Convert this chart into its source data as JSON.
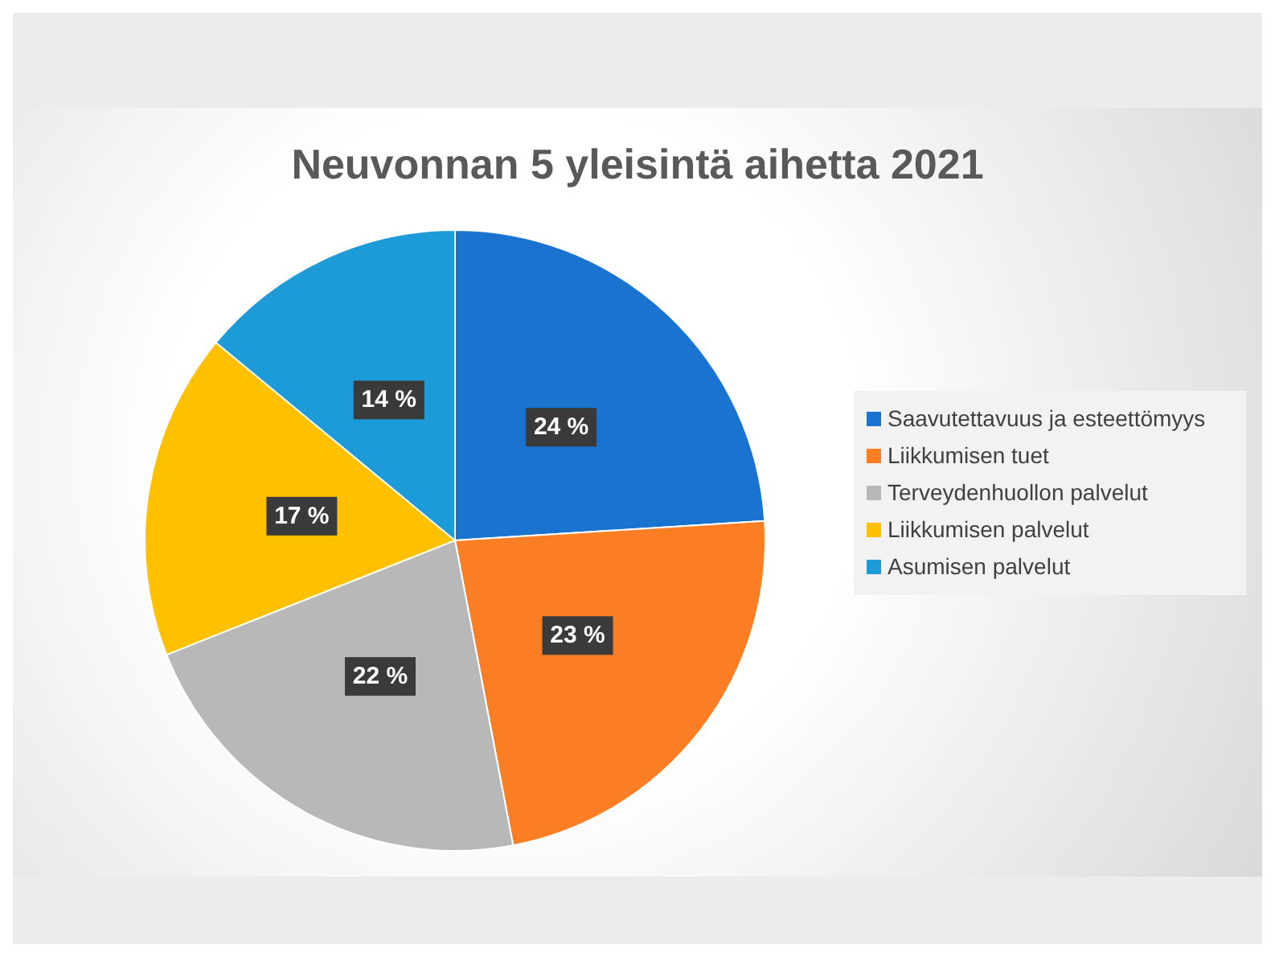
{
  "chart_data": {
    "type": "pie",
    "title": "Neuvonnan 5 yleisintä aihetta 2021",
    "categories": [
      "Saavutettavuus ja esteettömyys",
      "Liikkumisen tuet",
      "Terveydenhuollon palvelut",
      "Liikkumisen palvelut",
      "Asumisen palvelut"
    ],
    "values": [
      24,
      23,
      22,
      17,
      14
    ],
    "value_labels": [
      "24 %",
      "23 %",
      "22 %",
      "17 %",
      "14 %"
    ],
    "colors": [
      "#1a73cf",
      "#fb7e25",
      "#b8b8b8",
      "#ffc000",
      "#1c9bd8"
    ],
    "legend": "right"
  }
}
